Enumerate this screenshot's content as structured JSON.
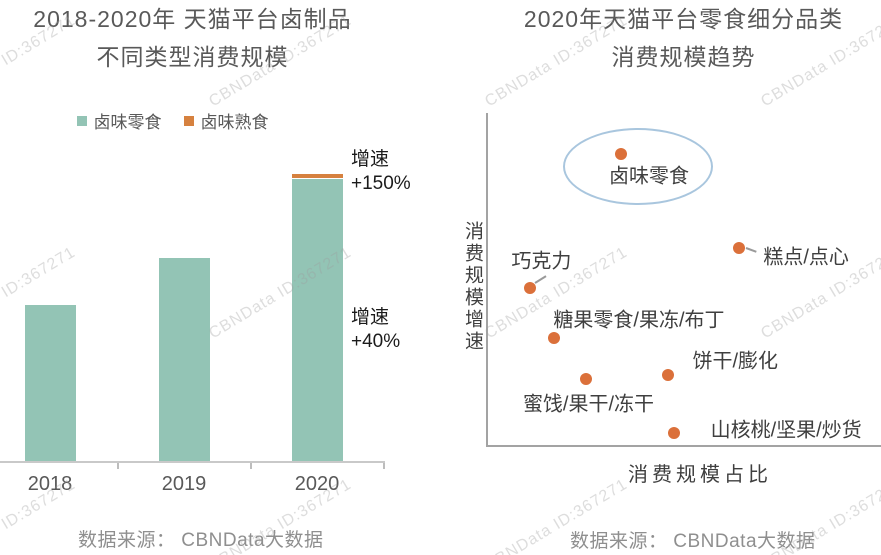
{
  "watermark": {
    "text": "CBNData ID:367271"
  },
  "colors": {
    "teal": "#93c4b5",
    "orange": "#d6813f",
    "dot_orange": "#db703a",
    "ellipse_blue": "#a9c6de",
    "title_gray": "#595959",
    "label_dark": "#3f3f3f",
    "annotation_black": "#1b1b1b",
    "source_gray": "#8f8f8f"
  },
  "left_chart": {
    "title_line1": "2018-2020年 天猫平台卤制品",
    "title_line2": "不同类型消费规模",
    "legend": [
      {
        "label": "卤味零食",
        "color": "#93c4b5"
      },
      {
        "label": "卤味熟食",
        "color": "#d6813f"
      }
    ],
    "annotation_top": "增速\n+150%",
    "annotation_bottom": "增速\n+40%",
    "source": "数据来源： CBNData大数据"
  },
  "right_chart": {
    "title_line1": "2020年天猫平台零食细分品类",
    "title_line2": "消费规模趋势",
    "y_axis_title": "消费规模增速",
    "x_axis_title": "消费规模占比",
    "source": "数据来源： CBNData大数据"
  },
  "chart_data": [
    {
      "type": "bar",
      "title": "2018-2020年 天猫平台卤制品不同类型消费规模",
      "categories": [
        "2018",
        "2019",
        "2020"
      ],
      "series": [
        {
          "name": "卤味零食",
          "color": "#93c4b5",
          "values": [
            1.0,
            1.3,
            1.8
          ]
        },
        {
          "name": "卤味熟食",
          "color": "#d6813f",
          "values": [
            0,
            0,
            0.03
          ]
        }
      ],
      "stacked": true,
      "ylabel": "",
      "value_axis_ticks": "none (相对规模, 无数值刻度)",
      "annotations": [
        "增速 +150%",
        "增速 +40%"
      ]
    },
    {
      "type": "scatter",
      "title": "2020年天猫平台零食细分品类消费规模趋势",
      "xlabel": "消费规模占比",
      "ylabel": "消费规模增速",
      "xlim": [
        0,
        1
      ],
      "ylim": [
        0,
        1
      ],
      "axis_ticks": "none",
      "highlight": "卤味零食",
      "points": [
        {
          "label": "卤味零食",
          "x": 0.34,
          "y": 0.87
        },
        {
          "label": "巧克力",
          "x": 0.11,
          "y": 0.47
        },
        {
          "label": "糕点/点心",
          "x": 0.64,
          "y": 0.59
        },
        {
          "label": "糖果零食/果冻/布丁",
          "x": 0.17,
          "y": 0.32
        },
        {
          "label": "蜜饯/果干/冻干",
          "x": 0.25,
          "y": 0.2
        },
        {
          "label": "饼干/膨化",
          "x": 0.46,
          "y": 0.21
        },
        {
          "label": "山核桃/坚果/炒货",
          "x": 0.475,
          "y": 0.04
        }
      ]
    }
  ]
}
